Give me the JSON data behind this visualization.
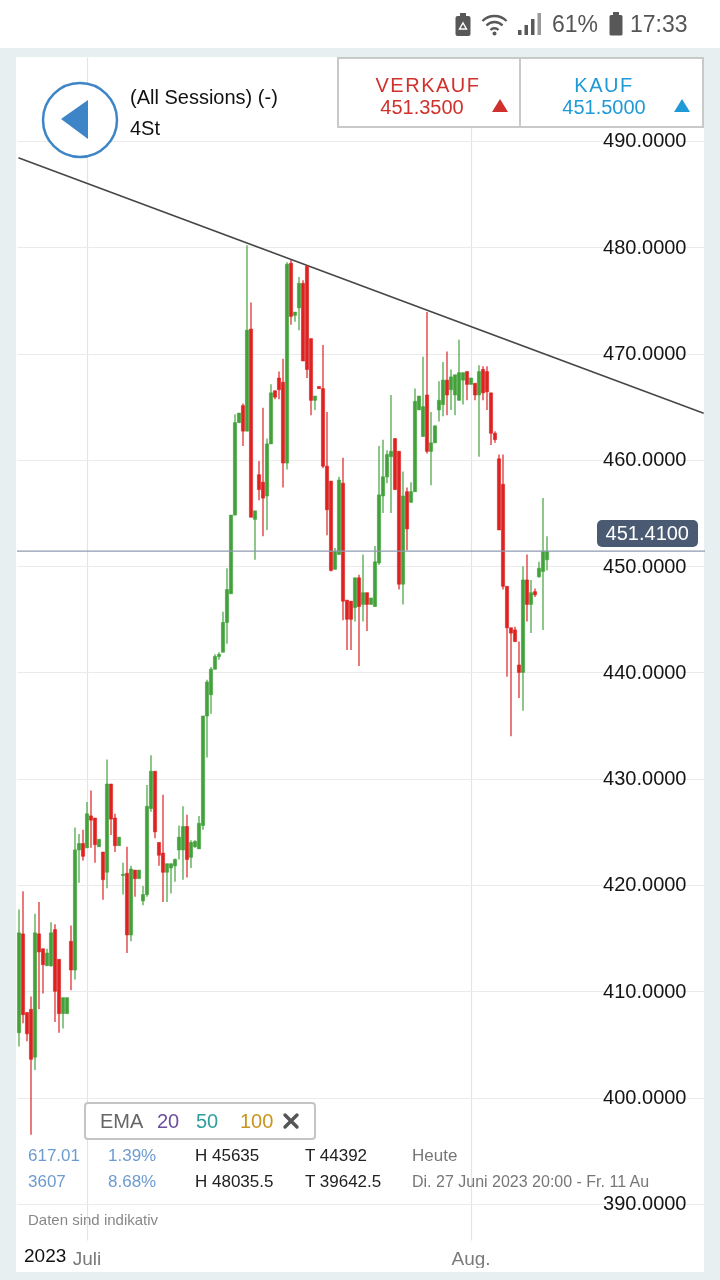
{
  "chart_data": {
    "type": "candlestick",
    "title": "(All Sessions) (-)",
    "subtitle": "4St",
    "annotations": [
      "VERKAUF",
      "451.3500",
      "KAUF",
      "451.5000",
      "617.01",
      "1.39%",
      "H 45635",
      "T 44392",
      "Heute",
      "3607",
      "8.68%",
      "H 48035.5",
      "T 39642.5",
      "Di. 27 Juni 2023 20:00 - Fr. 11 Au",
      "EMA",
      "20",
      "50",
      "100",
      "Daten sind indikativ",
      "2023",
      "61%",
      "17:33"
    ],
    "categories": [
      null,
      null,
      null,
      null,
      null,
      null,
      null,
      null,
      null,
      null,
      null,
      null,
      null,
      null,
      null,
      null,
      null,
      "Juli",
      null,
      null,
      null,
      null,
      null,
      null,
      null,
      null,
      null,
      null,
      null,
      null,
      null,
      null,
      null,
      null,
      null,
      null,
      null,
      null,
      null,
      null,
      null,
      null,
      null,
      null,
      null,
      null,
      null,
      null,
      null,
      null,
      null,
      null,
      null,
      null,
      null,
      null,
      null,
      null,
      null,
      null,
      null,
      null,
      null,
      null,
      null,
      null,
      null,
      null,
      null,
      null,
      null,
      null,
      null,
      null,
      null,
      null,
      null,
      null,
      null,
      null,
      null,
      null,
      null,
      null,
      null,
      null,
      null,
      null,
      null,
      null,
      null,
      null,
      null,
      null,
      null,
      null,
      null,
      null,
      null,
      null,
      null,
      null,
      null,
      null,
      null,
      null,
      null,
      null,
      null,
      null,
      null,
      null,
      null,
      "Aug.",
      null,
      null,
      null,
      null,
      null,
      null,
      null,
      null,
      null,
      null,
      null,
      null,
      null,
      null,
      null,
      null,
      null,
      null,
      null,
      null,
      null,
      null,
      null,
      null,
      null,
      null,
      null,
      null,
      null,
      null,
      null,
      null,
      null,
      null,
      null,
      null,
      null,
      null,
      null,
      null,
      null,
      null,
      null,
      null,
      null,
      null,
      null,
      null,
      null,
      null,
      null,
      null,
      null,
      null,
      null,
      null,
      null,
      null
    ],
    "ohlc": [
      [
        406.1,
        417.7,
        404.8,
        415.5
      ],
      [
        415.4,
        419.4,
        407.0,
        407.8
      ],
      [
        408.0,
        408.0,
        405.3,
        406.0
      ],
      [
        408.3,
        409.5,
        396.5,
        403.6
      ],
      [
        403.8,
        417.3,
        402.6,
        415.5
      ],
      [
        415.4,
        418.4,
        408.3,
        413.7
      ],
      [
        414.0,
        414.0,
        409.8,
        412.5
      ],
      [
        412.4,
        414.0,
        412.4,
        413.6
      ],
      [
        412.4,
        416.5,
        412.3,
        415.5
      ],
      [
        415.8,
        416.3,
        407.1,
        410.0
      ],
      [
        413.0,
        413.0,
        406.1,
        407.9
      ],
      [
        407.9,
        409.4,
        406.5,
        409.4
      ],
      [
        407.9,
        409.4,
        407.9,
        409.4
      ],
      [
        414.7,
        416.2,
        410.1,
        412.0
      ],
      [
        412.0,
        425.4,
        411.1,
        423.3
      ],
      [
        423.3,
        424.8,
        420.2,
        423.9
      ],
      [
        423.9,
        425.2,
        422.3,
        422.7
      ],
      [
        423.5,
        427.8,
        423.5,
        426.7
      ],
      [
        426.5,
        428.9,
        423.5,
        426.1
      ],
      [
        426.3,
        426.3,
        422.1,
        423.8
      ],
      [
        423.6,
        424.3,
        423.6,
        424.3
      ],
      [
        423.1,
        423.1,
        418.6,
        420.5
      ],
      [
        421.2,
        431.8,
        419.7,
        429.5
      ],
      [
        429.5,
        429.5,
        424.7,
        426.2
      ],
      [
        426.3,
        426.7,
        423.1,
        423.7
      ],
      [
        423.7,
        424.5,
        423.7,
        424.5
      ],
      [
        420.9,
        422.1,
        419.1,
        421.0
      ],
      [
        421.1,
        423.6,
        413.6,
        415.3
      ],
      [
        415.3,
        421.8,
        414.7,
        421.5
      ],
      [
        421.4,
        421.4,
        418.9,
        420.6
      ],
      [
        420.6,
        421.4,
        420.6,
        421.4
      ],
      [
        418.5,
        419.9,
        418.1,
        419.1
      ],
      [
        419.1,
        429.4,
        418.9,
        427.4
      ],
      [
        427.2,
        432.2,
        426.9,
        430.7
      ],
      [
        430.7,
        430.7,
        424.4,
        425.0
      ],
      [
        424.0,
        424.0,
        421.8,
        422.8
      ],
      [
        423.0,
        428.5,
        418.4,
        421.2
      ],
      [
        421.2,
        422.0,
        418.4,
        422.0
      ],
      [
        421.6,
        422.0,
        419.2,
        422.0
      ],
      [
        421.8,
        422.5,
        420.3,
        422.4
      ],
      [
        423.3,
        425.6,
        422.4,
        424.5
      ],
      [
        423.3,
        427.4,
        420.5,
        425.5
      ],
      [
        425.5,
        426.6,
        420.7,
        422.4
      ],
      [
        422.6,
        424.2,
        421.6,
        424.0
      ],
      [
        423.6,
        424.2,
        423.5,
        424.1
      ],
      [
        423.4,
        426.5,
        423.4,
        425.8
      ],
      [
        425.6,
        435.9,
        425.2,
        435.9
      ],
      [
        435.9,
        439.3,
        432.0,
        439.1
      ],
      [
        437.9,
        440.5,
        436.1,
        440.3
      ],
      [
        440.3,
        441.7,
        440.3,
        441.5
      ],
      [
        441.5,
        441.9,
        441.2,
        441.7
      ],
      [
        441.9,
        445.7,
        441.9,
        444.7
      ],
      [
        444.7,
        449.8,
        442.7,
        447.8
      ],
      [
        447.4,
        454.8,
        447.4,
        454.8
      ],
      [
        454.8,
        464.3,
        454.8,
        463.5
      ],
      [
        463.5,
        464.4,
        463.5,
        464.4
      ],
      [
        465.1,
        465.3,
        461.3,
        462.7
      ],
      [
        462.7,
        480.2,
        462.7,
        472.2
      ],
      [
        472.3,
        474.8,
        454.6,
        454.6
      ],
      [
        454.4,
        455.2,
        450.6,
        455.2
      ],
      [
        458.6,
        459.9,
        456.2,
        457.2
      ],
      [
        457.9,
        464.9,
        452.8,
        456.4
      ],
      [
        456.6,
        462.0,
        453.4,
        461.5
      ],
      [
        461.5,
        467.1,
        461.5,
        466.3
      ],
      [
        466.5,
        466.5,
        465.7,
        465.9
      ],
      [
        467.7,
        468.3,
        465.7,
        466.6
      ],
      [
        467.3,
        469.5,
        457.4,
        459.7
      ],
      [
        459.7,
        478.6,
        459.1,
        478.4
      ],
      [
        478.5,
        478.8,
        472.7,
        473.5
      ],
      [
        473.6,
        473.9,
        473.0,
        473.9
      ],
      [
        474.3,
        477.2,
        472.2,
        476.6
      ],
      [
        476.6,
        476.9,
        469.3,
        469.3
      ],
      [
        478.2,
        478.3,
        467.7,
        468.5
      ],
      [
        471.4,
        471.4,
        464.2,
        465.6
      ],
      [
        465.6,
        466.0,
        464.7,
        466.0
      ],
      [
        466.9,
        466.9,
        466.7,
        466.7
      ],
      [
        466.7,
        470.8,
        459.2,
        459.4
      ],
      [
        459.4,
        464.5,
        452.9,
        455.3
      ],
      [
        458.0,
        458.0,
        449.5,
        449.6
      ],
      [
        449.7,
        451.7,
        449.7,
        451.4
      ],
      [
        451.1,
        458.4,
        451.1,
        458.1
      ],
      [
        457.8,
        460.2,
        444.9,
        446.7
      ],
      [
        446.8,
        446.8,
        442.1,
        445.0
      ],
      [
        446.7,
        446.7,
        442.1,
        445.0
      ],
      [
        446.1,
        448.9,
        444.8,
        448.9
      ],
      [
        448.9,
        449.2,
        440.6,
        446.2
      ],
      [
        446.4,
        451.1,
        444.8,
        447.5
      ],
      [
        447.5,
        447.5,
        443.9,
        446.4
      ],
      [
        446.4,
        447.0,
        446.4,
        447.0
      ],
      [
        446.2,
        451.9,
        446.2,
        450.4
      ],
      [
        450.3,
        461.3,
        450.1,
        456.7
      ],
      [
        456.6,
        461.9,
        455.0,
        458.4
      ],
      [
        458.4,
        460.9,
        457.8,
        460.5
      ],
      [
        460.3,
        466.1,
        455.0,
        460.8
      ],
      [
        462.0,
        462.0,
        457.2,
        457.2
      ],
      [
        460.8,
        460.8,
        447.8,
        448.3
      ],
      [
        448.3,
        458.9,
        446.4,
        456.6
      ],
      [
        457.0,
        457.4,
        451.5,
        453.5
      ],
      [
        456.0,
        457.9,
        456.0,
        457.0
      ],
      [
        457.0,
        466.7,
        457.0,
        465.5
      ],
      [
        464.7,
        466.0,
        464.7,
        466.0
      ],
      [
        462.2,
        469.7,
        462.2,
        465.0
      ],
      [
        466.1,
        473.9,
        460.6,
        460.8
      ],
      [
        460.8,
        464.5,
        457.6,
        461.6
      ],
      [
        461.6,
        463.2,
        461.6,
        463.2
      ],
      [
        464.7,
        467.4,
        463.6,
        465.6
      ],
      [
        465.2,
        469.2,
        464.1,
        467.5
      ],
      [
        467.5,
        470.2,
        464.2,
        466.1
      ],
      [
        466.6,
        468.5,
        464.7,
        467.8
      ],
      [
        466.1,
        468.0,
        464.2,
        468.0
      ],
      [
        465.6,
        471.3,
        465.6,
        468.2
      ],
      [
        467.5,
        468.2,
        465.2,
        468.2
      ],
      [
        468.3,
        468.3,
        465.6,
        467.1
      ],
      [
        467.1,
        467.7,
        467.1,
        467.7
      ],
      [
        467.2,
        467.2,
        465.6,
        466.1
      ],
      [
        466.1,
        468.9,
        460.3,
        468.3
      ],
      [
        468.5,
        468.8,
        465.6,
        466.3
      ],
      [
        468.3,
        468.8,
        464.7,
        466.4
      ],
      [
        466.3,
        466.3,
        461.4,
        462.5
      ],
      [
        462.5,
        462.7,
        461.6,
        461.9
      ],
      [
        460.1,
        460.5,
        453.4,
        453.4
      ],
      [
        457.7,
        460.5,
        447.8,
        448.1
      ],
      [
        448.1,
        448.1,
        439.6,
        444.2
      ],
      [
        444.2,
        444.2,
        434.0,
        443.7
      ],
      [
        444.0,
        444.3,
        442.9,
        442.9
      ],
      [
        440.7,
        442.9,
        437.6,
        440.0
      ],
      [
        440.0,
        450.0,
        436.4,
        448.7
      ],
      [
        448.7,
        451.1,
        444.8,
        446.4
      ],
      [
        446.4,
        448.7,
        443.7,
        447.5
      ],
      [
        447.6,
        447.9,
        447.1,
        447.3
      ],
      [
        449.0,
        450.4,
        448.9,
        449.8
      ],
      [
        449.5,
        456.4,
        444.0,
        451.4
      ],
      [
        450.6,
        452.8,
        449.6,
        451.4
      ],
      null,
      null,
      null,
      null,
      null,
      null,
      null,
      null,
      null,
      null,
      null,
      null,
      null,
      null,
      null,
      null,
      null,
      null,
      null,
      null,
      null,
      null,
      null,
      null,
      null,
      null,
      null,
      null,
      null,
      null,
      null,
      null,
      null,
      null,
      null,
      null,
      null,
      null,
      null
    ],
    "colors": [
      "#42a13b",
      "#dd2222",
      "#dd2222",
      "#dd2222",
      "#42a13b",
      "#dd2222",
      "#dd2222",
      "#42a13b",
      "#42a13b",
      "#dd2222",
      "#dd2222",
      "#42a13b",
      "#42a13b",
      "#dd2222",
      "#42a13b",
      "#42a13b",
      "#dd2222",
      "#42a13b",
      "#dd2222",
      "#dd2222",
      "#42a13b",
      "#dd2222",
      "#42a13b",
      "#dd2222",
      "#dd2222",
      "#42a13b",
      "#42a13b",
      "#dd2222",
      "#42a13b",
      "#dd2222",
      "#42a13b",
      "#42a13b",
      "#42a13b",
      "#42a13b",
      "#dd2222",
      "#dd2222",
      "#dd2222",
      "#42a13b",
      "#42a13b",
      "#42a13b",
      "#42a13b",
      "#42a13b",
      "#dd2222",
      "#42a13b",
      "#42a13b",
      "#42a13b",
      "#42a13b",
      "#42a13b",
      "#42a13b",
      "#42a13b",
      "#42a13b",
      "#42a13b",
      "#42a13b",
      "#42a13b",
      "#42a13b",
      "#42a13b",
      "#dd2222",
      "#42a13b",
      "#dd2222",
      "#42a13b",
      "#dd2222",
      "#dd2222",
      "#42a13b",
      "#42a13b",
      "#dd2222",
      "#dd2222",
      "#dd2222",
      "#42a13b",
      "#dd2222",
      "#42a13b",
      "#42a13b",
      "#dd2222",
      "#dd2222",
      "#dd2222",
      "#42a13b",
      "#dd2222",
      "#dd2222",
      "#dd2222",
      "#dd2222",
      "#42a13b",
      "#42a13b",
      "#dd2222",
      "#dd2222",
      "#dd2222",
      "#42a13b",
      "#dd2222",
      "#42a13b",
      "#dd2222",
      "#42a13b",
      "#42a13b",
      "#42a13b",
      "#42a13b",
      "#42a13b",
      "#42a13b",
      "#dd2222",
      "#dd2222",
      "#42a13b",
      "#dd2222",
      "#42a13b",
      "#42a13b",
      "#42a13b",
      "#42a13b",
      "#dd2222",
      "#42a13b",
      "#42a13b",
      "#42a13b",
      "#42a13b",
      "#dd2222",
      "#42a13b",
      "#42a13b",
      "#42a13b",
      "#42a13b",
      "#dd2222",
      "#42a13b",
      "#dd2222",
      "#42a13b",
      "#dd2222",
      "#dd2222",
      "#dd2222",
      "#dd2222",
      "#dd2222",
      "#dd2222",
      "#dd2222",
      "#dd2222",
      "#dd2222",
      "#dd2222",
      "#42a13b",
      "#dd2222",
      "#42a13b",
      "#dd2222",
      "#42a13b",
      "#42a13b",
      "#42a13b",
      null,
      null,
      null,
      null,
      null,
      null,
      null,
      null,
      null,
      null,
      null,
      null,
      null,
      null,
      null,
      null,
      null,
      null,
      null,
      null,
      null,
      null,
      null,
      null,
      null,
      null,
      null,
      null,
      null,
      null,
      null,
      null,
      null,
      null,
      null,
      null,
      null,
      null,
      null
    ],
    "series": [
      {
        "type": "line",
        "color": "#474747",
        "values": [
          488.4,
          null,
          null,
          null,
          null,
          null,
          null,
          null,
          null,
          null,
          null,
          null,
          null,
          null,
          null,
          null,
          null,
          null,
          null,
          null,
          null,
          null,
          null,
          null,
          null,
          null,
          null,
          null,
          null,
          null,
          null,
          null,
          null,
          null,
          null,
          null,
          null,
          null,
          null,
          null,
          null,
          null,
          null,
          null,
          null,
          null,
          null,
          null,
          null,
          null,
          null,
          null,
          null,
          null,
          null,
          null,
          null,
          null,
          null,
          null,
          null,
          null,
          null,
          null,
          null,
          null,
          null,
          null,
          null,
          null,
          null,
          null,
          null,
          null,
          null,
          null,
          null,
          null,
          null,
          null,
          null,
          null,
          null,
          null,
          null,
          null,
          null,
          null,
          null,
          null,
          null,
          null,
          null,
          null,
          null,
          null,
          null,
          null,
          null,
          null,
          null,
          null,
          null,
          null,
          null,
          null,
          null,
          null,
          null,
          null,
          null,
          null,
          null,
          null,
          null,
          null,
          null,
          null,
          null,
          null,
          null,
          null,
          null,
          null,
          null,
          null,
          null,
          null,
          null,
          null,
          null,
          null,
          null,
          null,
          null,
          null,
          null,
          null,
          null,
          null,
          null,
          null,
          null,
          null,
          null,
          null,
          null,
          null,
          null,
          null,
          null,
          null,
          null,
          null,
          null,
          null,
          null,
          null,
          null,
          null,
          null,
          null,
          null,
          null,
          null,
          null,
          null,
          null,
          null,
          null,
          null,
          464.4
        ]
      }
    ],
    "ylim": [
      386.6,
      497.9
    ],
    "yticks": [
      {
        "value": 390,
        "label": "390.0000"
      },
      {
        "value": 400,
        "label": "400.0000"
      },
      {
        "value": 410,
        "label": "410.0000"
      },
      {
        "value": 420,
        "label": "420.0000"
      },
      {
        "value": 430,
        "label": "430.0000"
      },
      {
        "value": 440,
        "label": "440.0000"
      },
      {
        "value": 450,
        "label": "450.0000"
      },
      {
        "value": 460,
        "label": "460.0000"
      },
      {
        "value": 470,
        "label": "470.0000"
      },
      {
        "value": 480,
        "label": "480.0000"
      },
      {
        "value": 490,
        "label": "490.0000"
      }
    ],
    "grid": true,
    "ref_lines": [
      {
        "axis": "y",
        "value": 451.41,
        "label": "451.4100",
        "color": "#8e9bb0"
      }
    ]
  }
}
